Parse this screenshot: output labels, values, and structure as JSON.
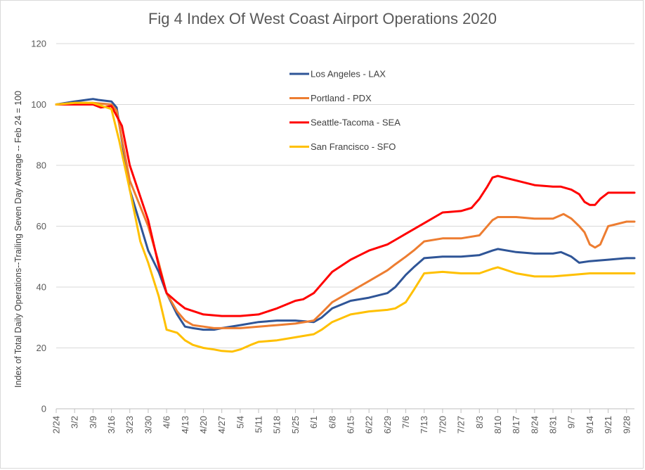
{
  "chart_data": {
    "type": "line",
    "title": "Fig 4 Index Of West Coast Airport Operations 2020",
    "xlabel": "",
    "ylabel": "Index of Total Daily Operations--Trailing Seven Day Average -- Feb 24 = 100",
    "ylim": [
      0,
      120
    ],
    "yticks": [
      0,
      20,
      40,
      60,
      80,
      100,
      120
    ],
    "xlim": [
      "2/24",
      "10/1"
    ],
    "xticks": [
      "2/24",
      "3/2",
      "3/9",
      "3/16",
      "3/23",
      "3/30",
      "4/6",
      "4/13",
      "4/20",
      "4/27",
      "5/4",
      "5/11",
      "5/18",
      "5/25",
      "6/1",
      "6/8",
      "6/15",
      "6/22",
      "6/29",
      "7/6",
      "7/13",
      "7/20",
      "7/27",
      "8/3",
      "8/10",
      "8/17",
      "8/24",
      "8/31",
      "9/7",
      "9/14",
      "9/21",
      "9/28"
    ],
    "grid": "horizontal",
    "legend_position": "top-center",
    "series": [
      {
        "name": "Los Angeles - LAX",
        "color": "#2f5597",
        "x": [
          "2/24",
          "3/2",
          "3/9",
          "3/11",
          "3/16",
          "3/18",
          "3/23",
          "3/30",
          "4/3",
          "4/6",
          "4/10",
          "4/13",
          "4/16",
          "4/20",
          "4/24",
          "4/27",
          "5/4",
          "5/11",
          "5/18",
          "5/25",
          "6/1",
          "6/4",
          "6/8",
          "6/15",
          "6/22",
          "6/29",
          "7/2",
          "7/6",
          "7/9",
          "7/13",
          "7/20",
          "7/27",
          "8/3",
          "8/8",
          "8/10",
          "8/17",
          "8/24",
          "8/31",
          "9/3",
          "9/7",
          "9/10",
          "9/14",
          "9/21",
          "9/28",
          "10/1"
        ],
        "values": [
          100,
          101,
          101.8,
          101.5,
          101,
          99,
          72,
          52,
          45,
          38,
          31,
          27,
          26.5,
          26,
          26,
          26.5,
          27.5,
          28.5,
          29,
          29,
          28.5,
          30,
          33,
          35.5,
          36.5,
          38,
          40,
          44,
          46.5,
          49.5,
          50,
          50,
          50.5,
          52,
          52.5,
          51.5,
          51,
          51,
          51.5,
          50,
          48,
          48.5,
          49,
          49.5,
          49.5
        ]
      },
      {
        "name": "Portland - PDX",
        "color": "#ed7d31",
        "x": [
          "2/24",
          "3/2",
          "3/9",
          "3/16",
          "3/18",
          "3/23",
          "3/30",
          "4/3",
          "4/6",
          "4/10",
          "4/13",
          "4/16",
          "4/20",
          "4/24",
          "4/27",
          "5/4",
          "5/11",
          "5/18",
          "5/25",
          "6/1",
          "6/4",
          "6/8",
          "6/15",
          "6/22",
          "6/29",
          "7/2",
          "7/6",
          "7/9",
          "7/13",
          "7/20",
          "7/27",
          "8/3",
          "8/8",
          "8/10",
          "8/17",
          "8/24",
          "8/31",
          "9/4",
          "9/7",
          "9/10",
          "9/12",
          "9/14",
          "9/16",
          "9/18",
          "9/21",
          "9/28",
          "10/1"
        ],
        "values": [
          100,
          100.5,
          100.5,
          100,
          98,
          75,
          60,
          48,
          38,
          32,
          29,
          27.5,
          27,
          26.5,
          26.5,
          26.5,
          27,
          27.5,
          28,
          29,
          31.5,
          35,
          38.5,
          42,
          45.5,
          47.5,
          50,
          52,
          55,
          56,
          56,
          57,
          62,
          63,
          63,
          62.5,
          62.5,
          64,
          62.5,
          60,
          58,
          54,
          53,
          54,
          60,
          61.5,
          61.5
        ]
      },
      {
        "name": "Seattle-Tacoma - SEA",
        "color": "#ff0000",
        "x": [
          "2/24",
          "3/2",
          "3/9",
          "3/12",
          "3/16",
          "3/20",
          "3/23",
          "3/30",
          "4/3",
          "4/6",
          "4/10",
          "4/13",
          "4/20",
          "4/27",
          "5/4",
          "5/11",
          "5/18",
          "5/25",
          "5/28",
          "6/1",
          "6/4",
          "6/8",
          "6/15",
          "6/22",
          "6/29",
          "7/2",
          "7/6",
          "7/13",
          "7/20",
          "7/27",
          "7/31",
          "8/3",
          "8/6",
          "8/8",
          "8/10",
          "8/17",
          "8/24",
          "8/31",
          "9/3",
          "9/7",
          "9/10",
          "9/12",
          "9/14",
          "9/16",
          "9/18",
          "9/21",
          "9/28",
          "10/1"
        ],
        "values": [
          100,
          100,
          100,
          99,
          99.5,
          93,
          80,
          62,
          47,
          38,
          35,
          33,
          31,
          30.5,
          30.5,
          31,
          33,
          35.5,
          36,
          38,
          41,
          45,
          49,
          52,
          54,
          55.5,
          57.5,
          61,
          64.5,
          65,
          66,
          69,
          73,
          76,
          76.5,
          75,
          73.5,
          73,
          73,
          72,
          70.5,
          68,
          67,
          67,
          69,
          71,
          71,
          71
        ]
      },
      {
        "name": "San Francisco - SFO",
        "color": "#ffc000",
        "x": [
          "2/24",
          "3/2",
          "3/9",
          "3/16",
          "3/19",
          "3/23",
          "3/27",
          "3/30",
          "4/3",
          "4/6",
          "4/10",
          "4/13",
          "4/16",
          "4/20",
          "4/24",
          "4/27",
          "5/1",
          "5/4",
          "5/8",
          "5/11",
          "5/18",
          "5/25",
          "6/1",
          "6/4",
          "6/8",
          "6/15",
          "6/22",
          "6/29",
          "7/2",
          "7/6",
          "7/9",
          "7/13",
          "7/20",
          "7/27",
          "8/3",
          "8/8",
          "8/10",
          "8/17",
          "8/24",
          "8/31",
          "9/7",
          "9/14",
          "9/21",
          "9/28",
          "10/1"
        ],
        "values": [
          100,
          100.5,
          100.5,
          98.5,
          88,
          72,
          55,
          48,
          37,
          26,
          25,
          22.5,
          21,
          20,
          19.5,
          19,
          18.8,
          19.5,
          21,
          22,
          22.5,
          23.5,
          24.5,
          26,
          28.5,
          31,
          32,
          32.5,
          33,
          35,
          39,
          44.5,
          45,
          44.5,
          44.5,
          46,
          46.5,
          44.5,
          43.5,
          43.5,
          44,
          44.5,
          44.5,
          44.5,
          44.5
        ]
      }
    ]
  }
}
